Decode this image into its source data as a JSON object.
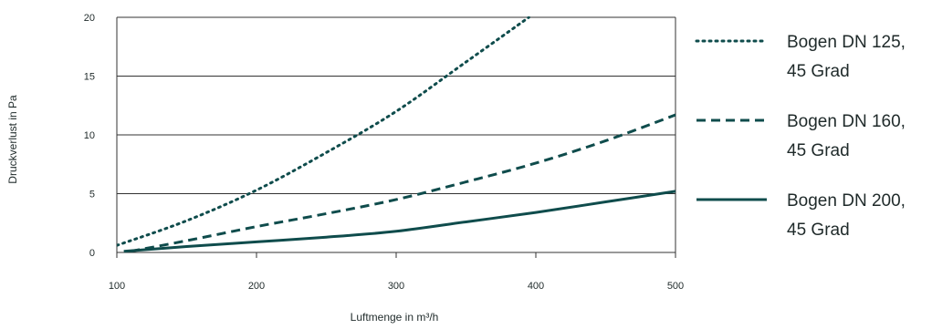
{
  "chart_data": {
    "type": "line",
    "title": "",
    "xlabel": "Luftmenge in m³/h",
    "ylabel": "Druckverlust in Pa",
    "xlim": [
      100,
      500
    ],
    "ylim": [
      0,
      20
    ],
    "x_ticks": [
      "100",
      "200",
      "300",
      "400",
      "500"
    ],
    "y_ticks": [
      "0",
      "5",
      "10",
      "15",
      "20"
    ],
    "grid": "horizontal",
    "legend_position": "right",
    "colors": {
      "series": "#0f4c4c",
      "grid": "#333333",
      "axis": "#333333"
    },
    "series": [
      {
        "name": [
          "Bogen DN 125,",
          "45 Grad"
        ],
        "line_style": "dotted",
        "x": [
          100,
          150,
          200,
          250,
          300,
          350,
          395
        ],
        "y": [
          0.6,
          2.7,
          5.3,
          8.5,
          12.0,
          16.2,
          20.0
        ]
      },
      {
        "name": [
          "Bogen DN 160,",
          "45 Grad"
        ],
        "line_style": "dashed",
        "x": [
          110,
          150,
          200,
          250,
          300,
          350,
          400,
          450,
          500
        ],
        "y": [
          0.1,
          1.0,
          2.2,
          3.3,
          4.5,
          6.0,
          7.6,
          9.5,
          11.7
        ]
      },
      {
        "name": [
          "Bogen DN 200,",
          "45 Grad"
        ],
        "line_style": "solid",
        "x": [
          105,
          150,
          200,
          250,
          300,
          350,
          400,
          450,
          500
        ],
        "y": [
          0.1,
          0.5,
          0.9,
          1.3,
          1.8,
          2.6,
          3.4,
          4.3,
          5.2
        ]
      }
    ]
  }
}
